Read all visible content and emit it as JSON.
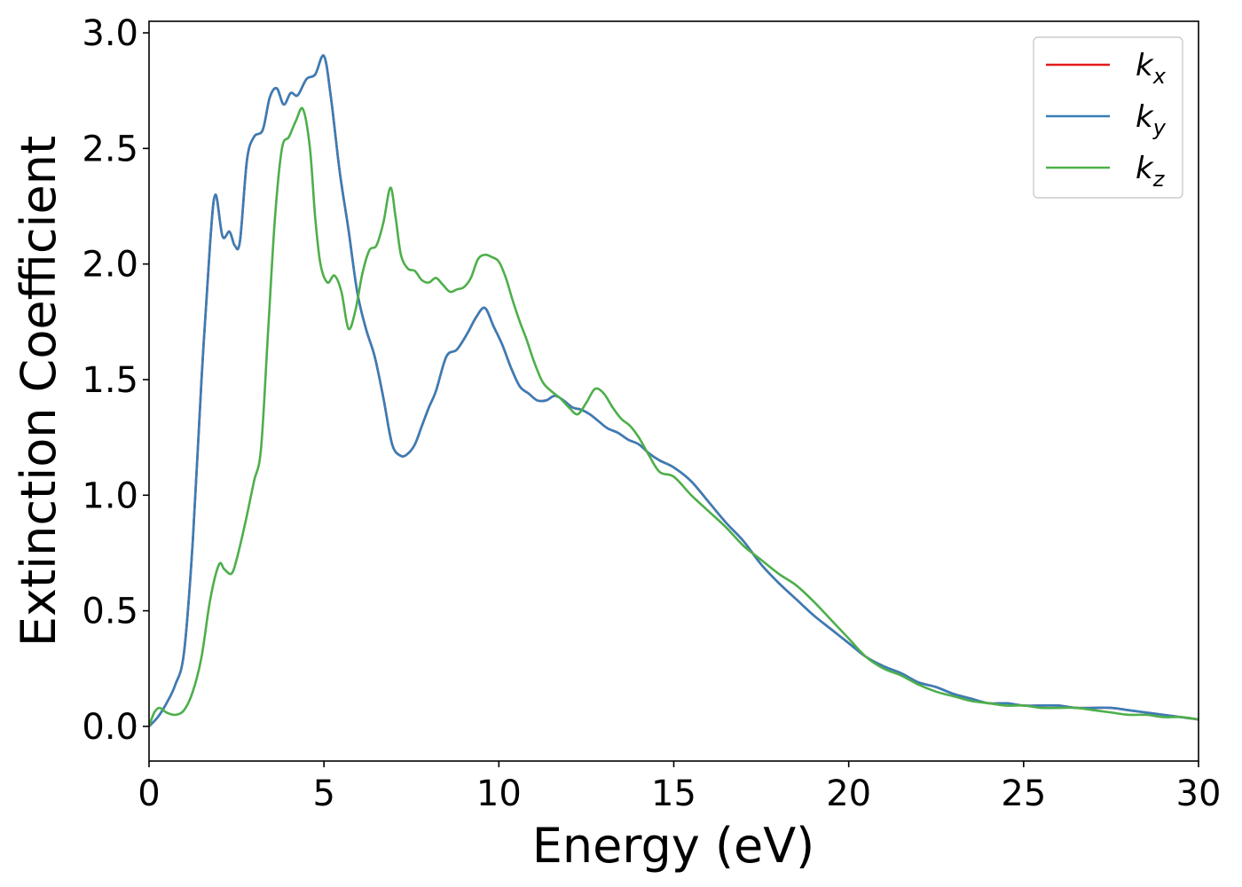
{
  "chart_data": {
    "type": "line",
    "title": "",
    "xlabel": "Energy (eV)",
    "ylabel": "Extinction Coefficient",
    "xlim": [
      0,
      30
    ],
    "ylim": [
      -0.15,
      3.05
    ],
    "xticks": [
      0,
      5,
      10,
      15,
      20,
      25,
      30
    ],
    "xtick_labels": [
      "0",
      "5",
      "10",
      "15",
      "20",
      "25",
      "30"
    ],
    "yticks": [
      0.0,
      0.5,
      1.0,
      1.5,
      2.0,
      2.5,
      3.0
    ],
    "ytick_labels": [
      "0.0",
      "0.5",
      "1.0",
      "1.5",
      "2.0",
      "2.5",
      "3.0"
    ],
    "grid": false,
    "legend_position": "top-right",
    "series": [
      {
        "name": "k_x",
        "label_base": "k",
        "label_sub": "x",
        "color": "#e41a1c",
        "x": [
          0,
          0.25,
          0.5,
          0.75,
          1,
          1.25,
          1.5,
          1.75,
          1.9,
          2.1,
          2.3,
          2.45,
          2.6,
          2.8,
          3.0,
          3.25,
          3.45,
          3.65,
          3.85,
          4.05,
          4.25,
          4.5,
          4.75,
          5.0,
          5.2,
          5.45,
          5.7,
          5.95,
          6.2,
          6.45,
          6.7,
          6.95,
          7.2,
          7.4,
          7.6,
          7.8,
          8.0,
          8.2,
          8.5,
          8.8,
          9.1,
          9.35,
          9.6,
          9.85,
          10.1,
          10.35,
          10.6,
          10.85,
          11.1,
          11.35,
          11.6,
          11.85,
          12.1,
          12.35,
          12.6,
          12.85,
          13.1,
          13.4,
          13.7,
          14.0,
          14.3,
          14.6,
          15.0,
          15.5,
          16.0,
          16.5,
          17.0,
          17.5,
          18.0,
          18.5,
          19.0,
          19.5,
          20.0,
          20.5,
          21.0,
          21.5,
          22.0,
          22.5,
          23.0,
          23.5,
          24.0,
          24.5,
          25.0,
          25.5,
          26.0,
          26.5,
          27.0,
          27.5,
          28.0,
          28.5,
          29.0,
          29.5,
          30.0
        ],
        "values": [
          0.0,
          0.04,
          0.1,
          0.18,
          0.32,
          0.8,
          1.5,
          2.1,
          2.3,
          2.12,
          2.14,
          2.08,
          2.1,
          2.45,
          2.55,
          2.58,
          2.72,
          2.76,
          2.69,
          2.74,
          2.73,
          2.8,
          2.82,
          2.9,
          2.72,
          2.4,
          2.15,
          1.88,
          1.72,
          1.6,
          1.42,
          1.22,
          1.17,
          1.18,
          1.22,
          1.3,
          1.38,
          1.45,
          1.6,
          1.63,
          1.7,
          1.77,
          1.81,
          1.73,
          1.65,
          1.55,
          1.47,
          1.44,
          1.41,
          1.41,
          1.43,
          1.41,
          1.38,
          1.37,
          1.35,
          1.32,
          1.29,
          1.27,
          1.24,
          1.22,
          1.18,
          1.15,
          1.12,
          1.06,
          0.97,
          0.88,
          0.8,
          0.7,
          0.62,
          0.55,
          0.48,
          0.42,
          0.36,
          0.3,
          0.26,
          0.23,
          0.19,
          0.17,
          0.14,
          0.12,
          0.1,
          0.1,
          0.09,
          0.09,
          0.09,
          0.08,
          0.08,
          0.08,
          0.07,
          0.06,
          0.05,
          0.04,
          0.03
        ]
      },
      {
        "name": "k_y",
        "label_base": "k",
        "label_sub": "y",
        "color": "#377eb8",
        "x": [
          0,
          0.25,
          0.5,
          0.75,
          1,
          1.25,
          1.5,
          1.75,
          1.9,
          2.1,
          2.3,
          2.45,
          2.6,
          2.8,
          3.0,
          3.25,
          3.45,
          3.65,
          3.85,
          4.05,
          4.25,
          4.5,
          4.75,
          5.0,
          5.2,
          5.45,
          5.7,
          5.95,
          6.2,
          6.45,
          6.7,
          6.95,
          7.2,
          7.4,
          7.6,
          7.8,
          8.0,
          8.2,
          8.5,
          8.8,
          9.1,
          9.35,
          9.6,
          9.85,
          10.1,
          10.35,
          10.6,
          10.85,
          11.1,
          11.35,
          11.6,
          11.85,
          12.1,
          12.35,
          12.6,
          12.85,
          13.1,
          13.4,
          13.7,
          14.0,
          14.3,
          14.6,
          15.0,
          15.5,
          16.0,
          16.5,
          17.0,
          17.5,
          18.0,
          18.5,
          19.0,
          19.5,
          20.0,
          20.5,
          21.0,
          21.5,
          22.0,
          22.5,
          23.0,
          23.5,
          24.0,
          24.5,
          25.0,
          25.5,
          26.0,
          26.5,
          27.0,
          27.5,
          28.0,
          28.5,
          29.0,
          29.5,
          30.0
        ],
        "values": [
          0.0,
          0.04,
          0.1,
          0.18,
          0.32,
          0.8,
          1.5,
          2.1,
          2.3,
          2.12,
          2.14,
          2.08,
          2.1,
          2.45,
          2.55,
          2.58,
          2.72,
          2.76,
          2.69,
          2.74,
          2.73,
          2.8,
          2.82,
          2.9,
          2.72,
          2.4,
          2.15,
          1.88,
          1.72,
          1.6,
          1.42,
          1.22,
          1.17,
          1.18,
          1.22,
          1.3,
          1.38,
          1.45,
          1.6,
          1.63,
          1.7,
          1.77,
          1.81,
          1.73,
          1.65,
          1.55,
          1.47,
          1.44,
          1.41,
          1.41,
          1.43,
          1.41,
          1.38,
          1.37,
          1.35,
          1.32,
          1.29,
          1.27,
          1.24,
          1.22,
          1.18,
          1.15,
          1.12,
          1.06,
          0.97,
          0.88,
          0.8,
          0.7,
          0.62,
          0.55,
          0.48,
          0.42,
          0.36,
          0.3,
          0.26,
          0.23,
          0.19,
          0.17,
          0.14,
          0.12,
          0.1,
          0.1,
          0.09,
          0.09,
          0.09,
          0.08,
          0.08,
          0.08,
          0.07,
          0.06,
          0.05,
          0.04,
          0.03
        ]
      },
      {
        "name": "k_z",
        "label_base": "k",
        "label_sub": "z",
        "color": "#4daf4a",
        "x": [
          0,
          0.15,
          0.3,
          0.5,
          0.75,
          1.0,
          1.25,
          1.5,
          1.75,
          2.0,
          2.15,
          2.35,
          2.5,
          2.75,
          3.0,
          3.2,
          3.4,
          3.6,
          3.8,
          4.0,
          4.2,
          4.4,
          4.6,
          4.75,
          4.9,
          5.1,
          5.3,
          5.5,
          5.7,
          5.9,
          6.1,
          6.3,
          6.5,
          6.7,
          6.9,
          7.05,
          7.2,
          7.4,
          7.6,
          7.8,
          8.0,
          8.2,
          8.4,
          8.6,
          8.8,
          9.0,
          9.2,
          9.4,
          9.6,
          9.8,
          10.0,
          10.2,
          10.4,
          10.6,
          10.8,
          11.0,
          11.25,
          11.5,
          11.75,
          12.0,
          12.25,
          12.5,
          12.75,
          13.0,
          13.25,
          13.5,
          13.75,
          14.0,
          14.3,
          14.6,
          15.0,
          15.5,
          16.0,
          16.5,
          17.0,
          17.5,
          18.0,
          18.5,
          19.0,
          19.5,
          20.0,
          20.5,
          21.0,
          21.5,
          22.0,
          22.5,
          23.0,
          23.5,
          24.0,
          24.5,
          25.0,
          25.5,
          26.0,
          26.5,
          27.0,
          27.5,
          28.0,
          28.5,
          29.0,
          29.5,
          30.0
        ],
        "values": [
          0.0,
          0.06,
          0.08,
          0.06,
          0.05,
          0.07,
          0.15,
          0.3,
          0.55,
          0.7,
          0.68,
          0.66,
          0.72,
          0.88,
          1.06,
          1.2,
          1.7,
          2.2,
          2.5,
          2.55,
          2.62,
          2.67,
          2.5,
          2.2,
          2.0,
          1.92,
          1.95,
          1.88,
          1.72,
          1.8,
          1.96,
          2.06,
          2.08,
          2.18,
          2.33,
          2.2,
          2.04,
          1.98,
          1.97,
          1.93,
          1.92,
          1.94,
          1.91,
          1.88,
          1.89,
          1.9,
          1.94,
          2.02,
          2.04,
          2.03,
          2.01,
          1.94,
          1.84,
          1.75,
          1.67,
          1.58,
          1.49,
          1.45,
          1.42,
          1.38,
          1.35,
          1.4,
          1.46,
          1.44,
          1.38,
          1.33,
          1.3,
          1.25,
          1.17,
          1.1,
          1.08,
          1.0,
          0.93,
          0.86,
          0.78,
          0.72,
          0.66,
          0.61,
          0.54,
          0.46,
          0.38,
          0.3,
          0.25,
          0.22,
          0.18,
          0.15,
          0.13,
          0.11,
          0.1,
          0.09,
          0.09,
          0.08,
          0.08,
          0.08,
          0.07,
          0.06,
          0.05,
          0.05,
          0.04,
          0.04,
          0.03
        ]
      }
    ]
  }
}
